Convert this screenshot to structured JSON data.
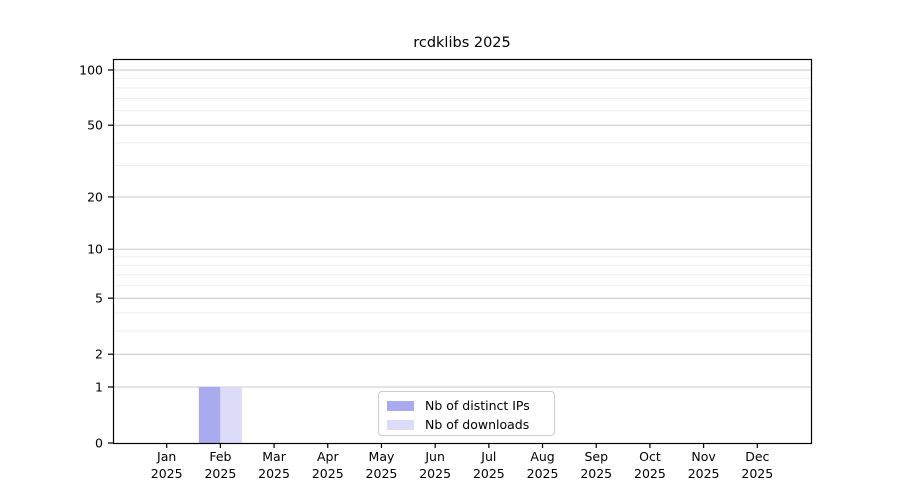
{
  "figure": {
    "title": "rcdklibs 2025"
  },
  "chart_data": {
    "type": "bar",
    "title": "rcdklibs 2025",
    "categories": [
      "Jan 2025",
      "Feb 2025",
      "Mar 2025",
      "Apr 2025",
      "May 2025",
      "Jun 2025",
      "Jul 2025",
      "Aug 2025",
      "Sep 2025",
      "Oct 2025",
      "Nov 2025",
      "Dec 2025"
    ],
    "x_tick_labels": [
      [
        "Jan",
        "2025"
      ],
      [
        "Feb",
        "2025"
      ],
      [
        "Mar",
        "2025"
      ],
      [
        "Apr",
        "2025"
      ],
      [
        "May",
        "2025"
      ],
      [
        "Jun",
        "2025"
      ],
      [
        "Jul",
        "2025"
      ],
      [
        "Aug",
        "2025"
      ],
      [
        "Sep",
        "2025"
      ],
      [
        "Oct",
        "2025"
      ],
      [
        "Nov",
        "2025"
      ],
      [
        "Dec",
        "2025"
      ]
    ],
    "series": [
      {
        "name": "Nb of distinct IPs",
        "color": "#aaaaee",
        "values": [
          0,
          1,
          0,
          0,
          0,
          0,
          0,
          0,
          0,
          0,
          0,
          0
        ]
      },
      {
        "name": "Nb of downloads",
        "color": "#dcdcf8",
        "values": [
          0,
          1,
          0,
          0,
          0,
          0,
          0,
          0,
          0,
          0,
          0,
          0
        ]
      }
    ],
    "y_axis": {
      "scale": "log1p",
      "major_ticks": [
        0,
        1,
        2,
        5,
        10,
        20,
        50,
        100
      ],
      "minor_ticks": [
        3,
        4,
        6,
        7,
        8,
        9,
        30,
        40,
        60,
        70,
        80,
        90
      ],
      "min": 0,
      "max": 113
    },
    "legend": {
      "location": "lower center"
    },
    "grid": {
      "major_color": "#c9c9c9",
      "minor_color": "#eeeeee"
    },
    "axis_color": "#000000",
    "text_color": "#000000",
    "background": "#ffffff"
  }
}
